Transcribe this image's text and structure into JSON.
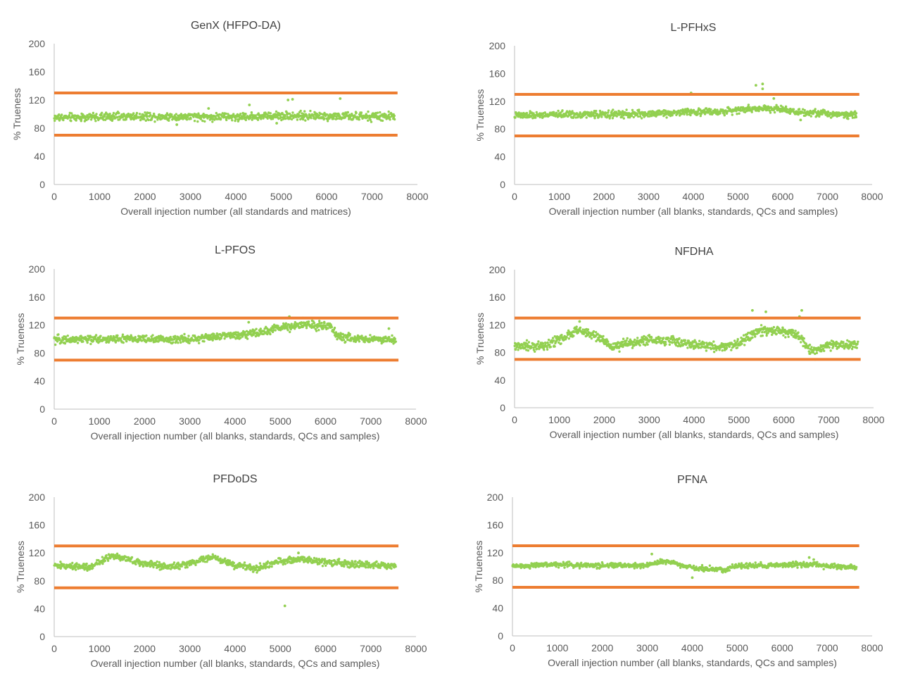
{
  "colors": {
    "points": "#92D050",
    "limits": "#ED7D31",
    "axis": "#BFBFBF",
    "text": "#595959",
    "title": "#404040"
  },
  "chart_data": [
    {
      "type": "scatter",
      "title": "GenX (HFPO-DA)",
      "xlabel": "Overall injection number (all standards and matrices)",
      "ylabel": "% Trueness",
      "xlim": [
        0,
        8000
      ],
      "ylim": [
        0,
        200
      ],
      "xticks": [
        0,
        1000,
        2000,
        3000,
        4000,
        5000,
        6000,
        7000,
        8000
      ],
      "yticks": [
        0,
        40,
        80,
        120,
        160,
        200
      ],
      "grid": false,
      "limit_lines": [
        130,
        70
      ],
      "series": [
        {
          "kind": "points",
          "x_range": [
            0,
            7500
          ],
          "profile": [
            [
              0,
              95
            ],
            [
              1000,
              96
            ],
            [
              2000,
              97
            ],
            [
              3000,
              96
            ],
            [
              4000,
              96
            ],
            [
              5000,
              98
            ],
            [
              6000,
              97
            ],
            [
              7000,
              96
            ],
            [
              7500,
              97
            ]
          ],
          "noise": 6,
          "outliers": [
            [
              4300,
              113
            ],
            [
              5150,
              120
            ],
            [
              5250,
              121
            ],
            [
              6300,
              122
            ],
            [
              3400,
              108
            ],
            [
              2700,
              85
            ],
            [
              4900,
              87
            ]
          ]
        }
      ]
    },
    {
      "type": "scatter",
      "title": "L-PFHxS",
      "xlabel": "Overall injection number (all blanks, standards, QCs and samples)",
      "ylabel": "% Trueness",
      "xlim": [
        0,
        8000
      ],
      "ylim": [
        0,
        200
      ],
      "xticks": [
        0,
        1000,
        2000,
        3000,
        4000,
        5000,
        6000,
        7000,
        8000
      ],
      "yticks": [
        0,
        40,
        80,
        120,
        160,
        200
      ],
      "grid": false,
      "limit_lines": [
        130,
        70
      ],
      "series": [
        {
          "kind": "points",
          "x_range": [
            0,
            7650
          ],
          "profile": [
            [
              0,
              99
            ],
            [
              1000,
              101
            ],
            [
              2000,
              101
            ],
            [
              3000,
              102
            ],
            [
              4000,
              105
            ],
            [
              4500,
              104
            ],
            [
              5000,
              108
            ],
            [
              5500,
              110
            ],
            [
              6000,
              109
            ],
            [
              6300,
              105
            ],
            [
              7000,
              102
            ],
            [
              7650,
              101
            ]
          ],
          "noise": 5,
          "outliers": [
            [
              3950,
              132
            ],
            [
              5400,
              143
            ],
            [
              5550,
              145
            ],
            [
              5550,
              138
            ],
            [
              5800,
              124
            ],
            [
              6400,
              93
            ]
          ]
        }
      ]
    },
    {
      "type": "scatter",
      "title": "L-PFOS",
      "xlabel": "Overall injection number (all blanks, standards, QCs and samples)",
      "ylabel": "% Trueness",
      "xlim": [
        0,
        8000
      ],
      "ylim": [
        0,
        200
      ],
      "xticks": [
        0,
        1000,
        2000,
        3000,
        4000,
        5000,
        6000,
        7000,
        8000
      ],
      "yticks": [
        0,
        40,
        80,
        120,
        160,
        200
      ],
      "grid": false,
      "limit_lines": [
        130,
        70
      ],
      "series": [
        {
          "kind": "points",
          "x_range": [
            0,
            7550
          ],
          "profile": [
            [
              0,
              99
            ],
            [
              1000,
              100
            ],
            [
              2000,
              100
            ],
            [
              3000,
              100
            ],
            [
              3500,
              103
            ],
            [
              4000,
              106
            ],
            [
              4500,
              109
            ],
            [
              5000,
              116
            ],
            [
              5500,
              120
            ],
            [
              6100,
              119
            ],
            [
              6300,
              102
            ],
            [
              7000,
              100
            ],
            [
              7550,
              99
            ]
          ],
          "noise": 6,
          "outliers": [
            [
              5200,
              132
            ],
            [
              5500,
              130
            ],
            [
              7400,
              115
            ],
            [
              4300,
              124
            ]
          ]
        }
      ]
    },
    {
      "type": "scatter",
      "title": "NFDHA",
      "xlabel": "Overall injection number (all blanks, standards, QCs and samples)",
      "ylabel": "% Trueness",
      "xlim": [
        0,
        8000
      ],
      "ylim": [
        0,
        200
      ],
      "xticks": [
        0,
        1000,
        2000,
        3000,
        4000,
        5000,
        6000,
        7000,
        8000
      ],
      "yticks": [
        0,
        40,
        80,
        120,
        160,
        200
      ],
      "grid": false,
      "limit_lines": [
        130,
        70
      ],
      "series": [
        {
          "kind": "points",
          "x_range": [
            0,
            7650
          ],
          "profile": [
            [
              0,
              88
            ],
            [
              700,
              90
            ],
            [
              1100,
              102
            ],
            [
              1400,
              112
            ],
            [
              1800,
              104
            ],
            [
              2200,
              88
            ],
            [
              2500,
              93
            ],
            [
              3000,
              98
            ],
            [
              3500,
              97
            ],
            [
              4000,
              91
            ],
            [
              4600,
              88
            ],
            [
              5000,
              94
            ],
            [
              5400,
              110
            ],
            [
              5700,
              113
            ],
            [
              6300,
              107
            ],
            [
              6600,
              82
            ],
            [
              7000,
              90
            ],
            [
              7650,
              91
            ]
          ],
          "noise": 7,
          "outliers": [
            [
              5300,
              141
            ],
            [
              5600,
              139
            ],
            [
              6400,
              141
            ],
            [
              6350,
              132
            ],
            [
              1450,
              125
            ],
            [
              6700,
              70
            ]
          ]
        }
      ]
    },
    {
      "type": "scatter",
      "title": "PFDoDS",
      "xlabel": "Overall injection number (all blanks, standards, QCs and samples)",
      "ylabel": "% Trueness",
      "xlim": [
        0,
        8000
      ],
      "ylim": [
        0,
        200
      ],
      "xticks": [
        0,
        1000,
        2000,
        3000,
        4000,
        5000,
        6000,
        7000,
        8000
      ],
      "yticks": [
        0,
        40,
        80,
        120,
        160,
        200
      ],
      "grid": false,
      "limit_lines": [
        130,
        70
      ],
      "series": [
        {
          "kind": "points",
          "x_range": [
            0,
            7550
          ],
          "profile": [
            [
              0,
              102
            ],
            [
              800,
              100
            ],
            [
              1300,
              117
            ],
            [
              1800,
              107
            ],
            [
              2500,
              100
            ],
            [
              3000,
              105
            ],
            [
              3500,
              114
            ],
            [
              4000,
              102
            ],
            [
              4500,
              98
            ],
            [
              5000,
              108
            ],
            [
              5500,
              111
            ],
            [
              6000,
              107
            ],
            [
              6500,
              104
            ],
            [
              7000,
              103
            ],
            [
              7550,
              101
            ]
          ],
          "noise": 5,
          "outliers": [
            [
              5100,
              44
            ],
            [
              5400,
              120
            ],
            [
              4400,
              93
            ]
          ]
        }
      ]
    },
    {
      "type": "scatter",
      "title": "PFNA",
      "xlabel": "Overall injection number (all blanks, standards, QCs and samples)",
      "ylabel": "% Trueness",
      "xlim": [
        0,
        8000
      ],
      "ylim": [
        0,
        200
      ],
      "xticks": [
        0,
        1000,
        2000,
        3000,
        4000,
        5000,
        6000,
        7000,
        8000
      ],
      "yticks": [
        0,
        40,
        80,
        120,
        160,
        200
      ],
      "grid": false,
      "limit_lines": [
        130,
        70
      ],
      "series": [
        {
          "kind": "points",
          "x_range": [
            0,
            7650
          ],
          "profile": [
            [
              0,
              101
            ],
            [
              1000,
              103
            ],
            [
              2000,
              101
            ],
            [
              3000,
              102
            ],
            [
              3400,
              108
            ],
            [
              4000,
              98
            ],
            [
              4700,
              95
            ],
            [
              5000,
              101
            ],
            [
              6000,
              102
            ],
            [
              6700,
              103
            ],
            [
              7000,
              100
            ],
            [
              7650,
              99
            ]
          ],
          "noise": 4,
          "outliers": [
            [
              3100,
              118
            ],
            [
              4000,
              84
            ],
            [
              6600,
              113
            ],
            [
              6700,
              110
            ]
          ]
        }
      ]
    }
  ]
}
